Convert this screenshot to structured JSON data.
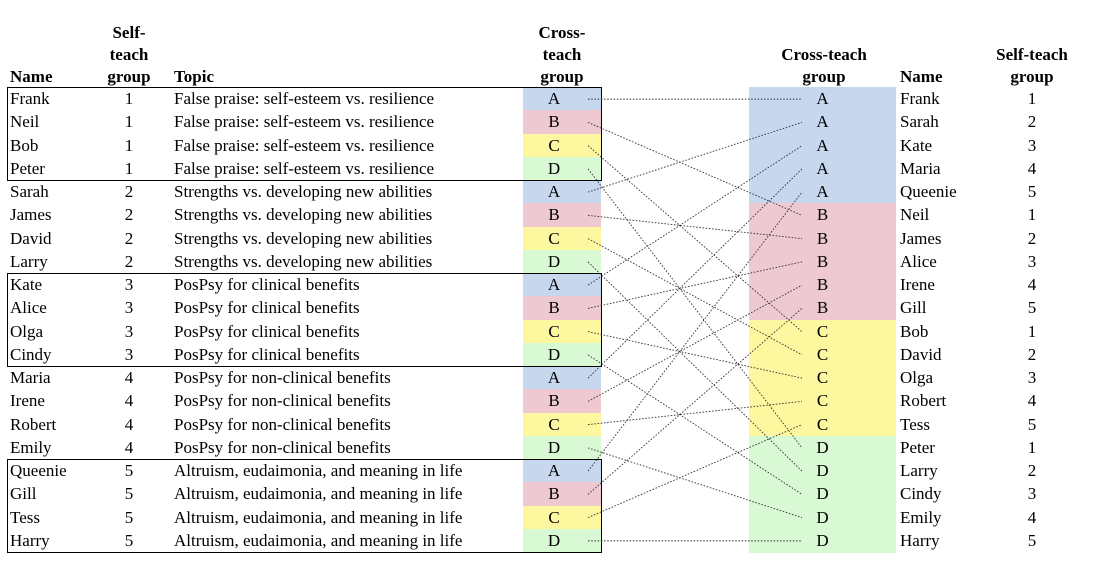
{
  "colors": {
    "A": "#c6d7ee",
    "B": "#efc9d1",
    "C": "#fdf7a0",
    "D": "#d9f8d4"
  },
  "left": {
    "headers": {
      "name": "Name",
      "self_teach": [
        "Self-",
        "teach",
        "group"
      ],
      "topic": "Topic",
      "cross_teach": [
        "Cross-",
        "teach",
        "group"
      ]
    },
    "rows": [
      {
        "name": "Frank",
        "group": "1",
        "topic": "False praise: self-esteem vs. resilience",
        "cross": "A"
      },
      {
        "name": "Neil",
        "group": "1",
        "topic": "False praise: self-esteem vs. resilience",
        "cross": "B"
      },
      {
        "name": "Bob",
        "group": "1",
        "topic": "False praise: self-esteem vs. resilience",
        "cross": "C"
      },
      {
        "name": "Peter",
        "group": "1",
        "topic": "False praise: self-esteem vs. resilience",
        "cross": "D"
      },
      {
        "name": "Sarah",
        "group": "2",
        "topic": "Strengths vs. developing new abilities",
        "cross": "A"
      },
      {
        "name": "James",
        "group": "2",
        "topic": "Strengths vs. developing new abilities",
        "cross": "B"
      },
      {
        "name": "David",
        "group": "2",
        "topic": "Strengths vs. developing new abilities",
        "cross": "C"
      },
      {
        "name": "Larry",
        "group": "2",
        "topic": "Strengths vs. developing new abilities",
        "cross": "D"
      },
      {
        "name": "Kate",
        "group": "3",
        "topic": "PosPsy for clinical benefits",
        "cross": "A"
      },
      {
        "name": "Alice",
        "group": "3",
        "topic": "PosPsy for clinical benefits",
        "cross": "B"
      },
      {
        "name": "Olga",
        "group": "3",
        "topic": "PosPsy for clinical benefits",
        "cross": "C"
      },
      {
        "name": "Cindy",
        "group": "3",
        "topic": "PosPsy for clinical benefits",
        "cross": "D"
      },
      {
        "name": "Maria",
        "group": "4",
        "topic": "PosPsy for non-clinical benefits",
        "cross": "A"
      },
      {
        "name": "Irene",
        "group": "4",
        "topic": "PosPsy for non-clinical benefits",
        "cross": "B"
      },
      {
        "name": "Robert",
        "group": "4",
        "topic": "PosPsy for non-clinical benefits",
        "cross": "C"
      },
      {
        "name": "Emily",
        "group": "4",
        "topic": "PosPsy for non-clinical benefits",
        "cross": "D"
      },
      {
        "name": "Queenie",
        "group": "5",
        "topic": "Altruism, eudaimonia, and meaning in life",
        "cross": "A"
      },
      {
        "name": "Gill",
        "group": "5",
        "topic": "Altruism, eudaimonia, and meaning in life",
        "cross": "B"
      },
      {
        "name": "Tess",
        "group": "5",
        "topic": "Altruism, eudaimonia, and meaning in life",
        "cross": "C"
      },
      {
        "name": "Harry",
        "group": "5",
        "topic": "Altruism, eudaimonia, and meaning in life",
        "cross": "D"
      }
    ]
  },
  "right": {
    "headers": {
      "cross_teach": [
        "Cross-teach",
        "group"
      ],
      "name": "Name",
      "self_teach": [
        "Self-teach",
        "group"
      ]
    },
    "rows": [
      {
        "cross": "A",
        "name": "Frank",
        "group": "1"
      },
      {
        "cross": "A",
        "name": "Sarah",
        "group": "2"
      },
      {
        "cross": "A",
        "name": "Kate",
        "group": "3"
      },
      {
        "cross": "A",
        "name": "Maria",
        "group": "4"
      },
      {
        "cross": "A",
        "name": "Queenie",
        "group": "5"
      },
      {
        "cross": "B",
        "name": "Neil",
        "group": "1"
      },
      {
        "cross": "B",
        "name": "James",
        "group": "2"
      },
      {
        "cross": "B",
        "name": "Alice",
        "group": "3"
      },
      {
        "cross": "B",
        "name": "Irene",
        "group": "4"
      },
      {
        "cross": "B",
        "name": "Gill",
        "group": "5"
      },
      {
        "cross": "C",
        "name": "Bob",
        "group": "1"
      },
      {
        "cross": "C",
        "name": "David",
        "group": "2"
      },
      {
        "cross": "C",
        "name": "Olga",
        "group": "3"
      },
      {
        "cross": "C",
        "name": "Robert",
        "group": "4"
      },
      {
        "cross": "C",
        "name": "Tess",
        "group": "5"
      },
      {
        "cross": "D",
        "name": "Peter",
        "group": "1"
      },
      {
        "cross": "D",
        "name": "Larry",
        "group": "2"
      },
      {
        "cross": "D",
        "name": "Cindy",
        "group": "3"
      },
      {
        "cross": "D",
        "name": "Emily",
        "group": "4"
      },
      {
        "cross": "D",
        "name": "Harry",
        "group": "5"
      }
    ]
  }
}
